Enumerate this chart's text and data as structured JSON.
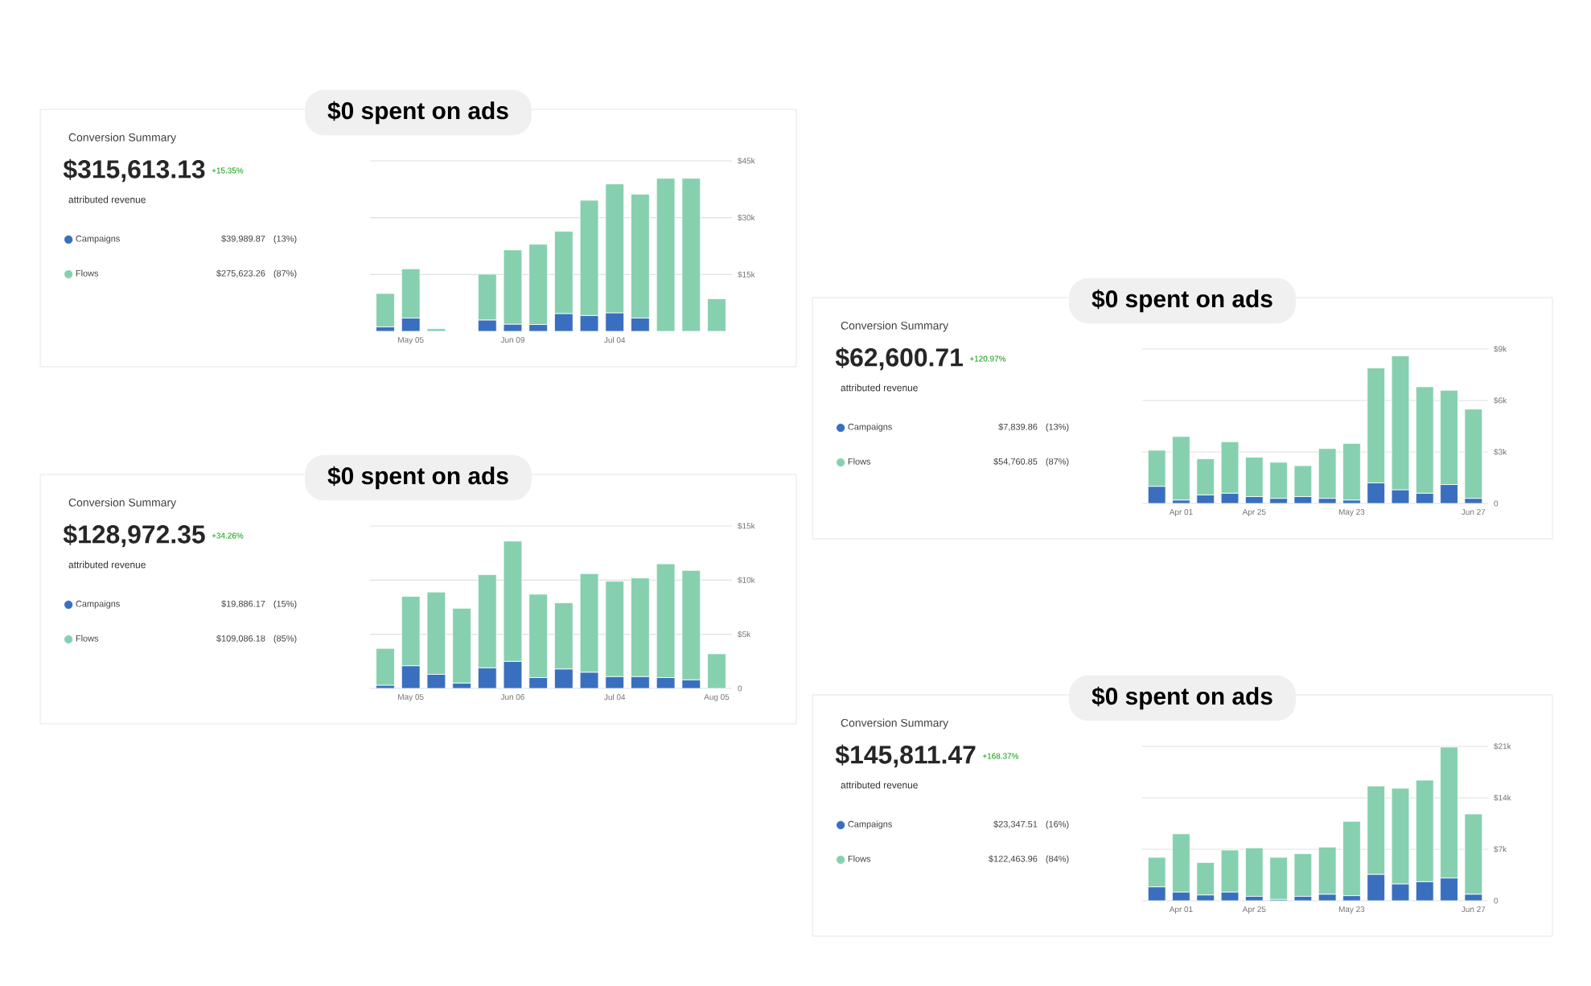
{
  "chart_data": [
    {
      "type": "bar",
      "stacked": true,
      "legend": "left",
      "grid": "y",
      "categories": [
        null,
        "May 05",
        null,
        null,
        null,
        "Jun 09",
        null,
        null,
        null,
        "Jul 04",
        null,
        null,
        null,
        null
      ],
      "ylim": [
        0,
        45000
      ],
      "yticks": [
        {
          "value": 15000,
          "label": "$15k"
        },
        {
          "value": 30000,
          "label": "$30k"
        },
        {
          "value": 45000,
          "label": "$45k"
        }
      ],
      "series": [
        {
          "name": "Campaigns",
          "color": "#3a6fbf",
          "values": [
            1200,
            3500,
            0,
            null,
            3000,
            1900,
            1800,
            4700,
            4200,
            4900,
            3500,
            null,
            null,
            null
          ]
        },
        {
          "name": "Flows",
          "color": "#86d0b0",
          "values": [
            8800,
            13000,
            700,
            null,
            12100,
            19600,
            21200,
            21700,
            30400,
            34000,
            32700,
            40400,
            40400,
            8600
          ]
        }
      ],
      "annotations": [
        "$0 spent on ads",
        "$315,613.13",
        "+15.35%",
        "attributed revenue",
        "$39,989.87",
        "(13%)",
        "$275,623.26",
        "(87%)",
        "Conversion Summary"
      ]
    },
    {
      "type": "bar",
      "stacked": true,
      "legend": "left",
      "grid": "y",
      "categories": [
        null,
        "Apr 01",
        null,
        null,
        "Apr 25",
        null,
        null,
        null,
        "May 23",
        null,
        null,
        null,
        null,
        "Jun 27"
      ],
      "ylim": [
        0,
        9000
      ],
      "yticks": [
        {
          "value": 0,
          "label": "0"
        },
        {
          "value": 3000,
          "label": "$3k"
        },
        {
          "value": 6000,
          "label": "$6k"
        },
        {
          "value": 9000,
          "label": "$9k"
        }
      ],
      "series": [
        {
          "name": "Campaigns",
          "color": "#3a6fbf",
          "values": [
            1000,
            200,
            500,
            600,
            400,
            300,
            400,
            300,
            200,
            1200,
            800,
            600,
            1100,
            300
          ]
        },
        {
          "name": "Flows",
          "color": "#86d0b0",
          "values": [
            2100,
            3700,
            2100,
            3000,
            2300,
            2100,
            1800,
            2900,
            3300,
            6700,
            7800,
            6200,
            5500,
            5200
          ]
        }
      ],
      "annotations": [
        "$0 spent on ads",
        "$62,600.71",
        "+120.97%",
        "attributed revenue",
        "$7,839.86",
        "(13%)",
        "$54,760.85",
        "(87%)",
        "Conversion Summary"
      ]
    },
    {
      "type": "bar",
      "stacked": true,
      "legend": "left",
      "grid": "y",
      "categories": [
        null,
        "May 05",
        null,
        null,
        null,
        "Jun 06",
        null,
        null,
        null,
        "Jul 04",
        null,
        null,
        null,
        "Aug 05"
      ],
      "ylim": [
        0,
        15000
      ],
      "yticks": [
        {
          "value": 0,
          "label": "0"
        },
        {
          "value": 5000,
          "label": "$5k"
        },
        {
          "value": 10000,
          "label": "$10k"
        },
        {
          "value": 15000,
          "label": "$15k"
        }
      ],
      "series": [
        {
          "name": "Campaigns",
          "color": "#3a6fbf",
          "values": [
            300,
            2100,
            1300,
            500,
            1900,
            2500,
            1000,
            1800,
            1500,
            1100,
            1100,
            1000,
            800,
            0
          ]
        },
        {
          "name": "Flows",
          "color": "#86d0b0",
          "values": [
            3400,
            6400,
            7600,
            6900,
            8600,
            11100,
            7700,
            6100,
            9100,
            8800,
            9100,
            10500,
            10100,
            3200
          ]
        }
      ],
      "annotations": [
        "$0 spent on ads",
        "$128,972.35",
        "+34.26%",
        "attributed revenue",
        "$19,886.17",
        "(15%)",
        "$109,086.18",
        "(85%)",
        "Conversion Summary"
      ]
    },
    {
      "type": "bar",
      "stacked": true,
      "legend": "left",
      "grid": "y",
      "categories": [
        null,
        "Apr 01",
        null,
        null,
        "Apr 25",
        null,
        null,
        null,
        "May 23",
        null,
        null,
        null,
        null,
        "Jun 27"
      ],
      "ylim": [
        0,
        21000
      ],
      "yticks": [
        {
          "value": 0,
          "label": "0"
        },
        {
          "value": 7000,
          "label": "$7k"
        },
        {
          "value": 14000,
          "label": "$14k"
        },
        {
          "value": 21000,
          "label": "$21k"
        }
      ],
      "series": [
        {
          "name": "Campaigns",
          "color": "#3a6fbf",
          "values": [
            1900,
            1200,
            800,
            1200,
            600,
            200,
            600,
            900,
            700,
            3600,
            2300,
            2600,
            3100,
            900
          ]
        },
        {
          "name": "Flows",
          "color": "#86d0b0",
          "values": [
            4000,
            7900,
            4400,
            5700,
            6600,
            5700,
            5800,
            6400,
            10100,
            12000,
            13000,
            13800,
            17800,
            10900
          ]
        }
      ],
      "annotations": [
        "$0 spent on ads",
        "$145,811.47",
        "+168.37%",
        "attributed revenue",
        "$23,347.51",
        "(16%)",
        "$122,463.96",
        "(84%)",
        "Conversion Summary"
      ]
    }
  ]
}
